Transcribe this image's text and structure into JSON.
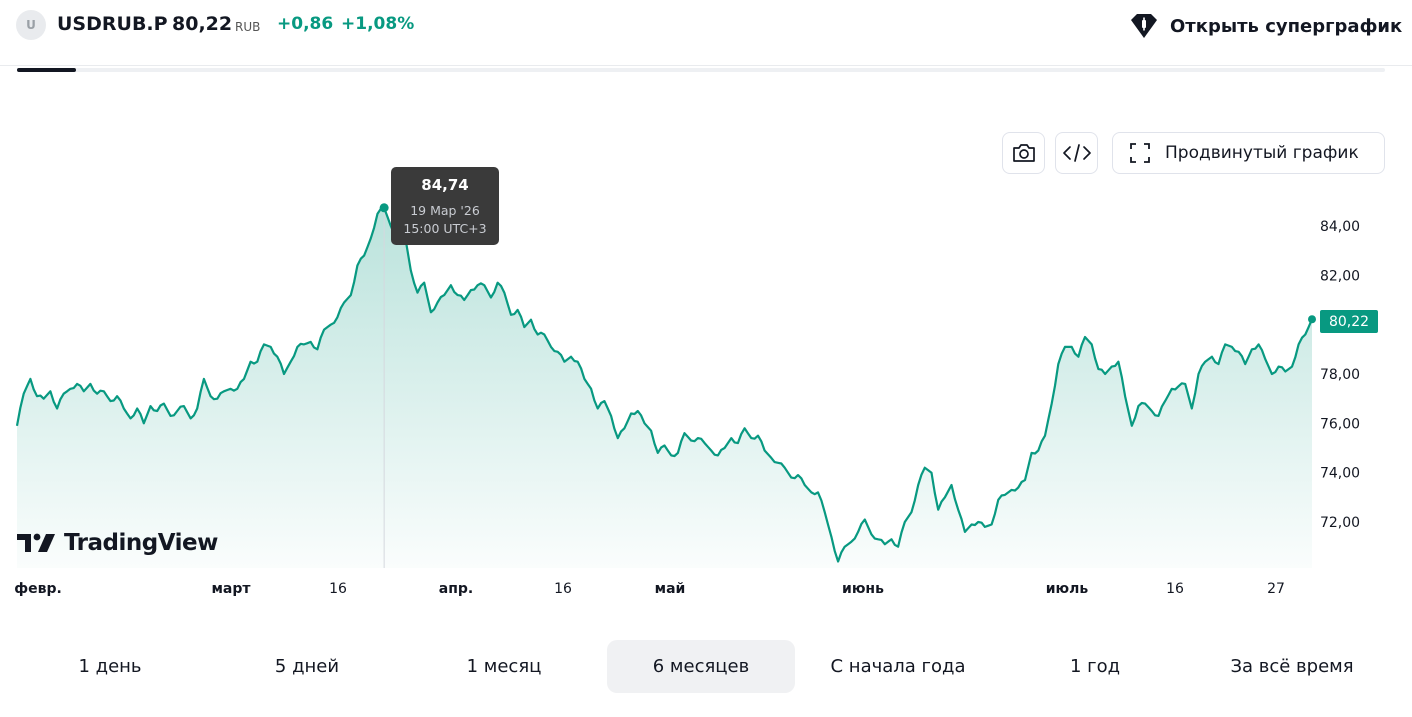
{
  "header": {
    "avatar_letter": "U",
    "ticker": "USDRUB.P",
    "price": "80,22",
    "currency": "RUB",
    "change": "+0,86",
    "change_pct": "+1,08%",
    "super_chart_label": "Открыть суперграфик"
  },
  "toolbar": {
    "screenshot_icon": "camera-icon",
    "embed_icon": "code-icon",
    "advanced_label": "Продвинутый график"
  },
  "tooltip": {
    "value": "84,74",
    "date": "19 Мар '26",
    "time": "15:00 UTC+3"
  },
  "last_price_label": "80,22",
  "watermark": "TradingView",
  "colors": {
    "accent": "#089981",
    "tooltip_bg": "#3a3a3a",
    "text": "#131722"
  },
  "periods": [
    {
      "label": "1 день",
      "active": false
    },
    {
      "label": "5 дней",
      "active": false
    },
    {
      "label": "1 месяц",
      "active": false
    },
    {
      "label": "6 месяцев",
      "active": true
    },
    {
      "label": "С начала года",
      "active": false
    },
    {
      "label": "1 год",
      "active": false
    },
    {
      "label": "За всё время",
      "active": false
    }
  ],
  "chart_data": {
    "type": "area",
    "series": [
      {
        "values": [
          75.9,
          77.2,
          77.8,
          77.1,
          77.0,
          77.3,
          76.6,
          77.2,
          77.4,
          77.6,
          77.3,
          77.6,
          77.2,
          77.3,
          76.9,
          77.1,
          76.6,
          76.2,
          76.6,
          76.0,
          76.7,
          76.5,
          76.8,
          76.3,
          76.5,
          76.7,
          76.2,
          76.6,
          77.8,
          77.1,
          77.0,
          77.3,
          77.4,
          77.4,
          77.8,
          78.5,
          78.5,
          79.2,
          79.1,
          78.7,
          78.0,
          78.5,
          79.1,
          79.2,
          79.3,
          79.0,
          79.8,
          80.0,
          80.3,
          80.9,
          81.2,
          82.4,
          82.8,
          83.5,
          84.5,
          84.74,
          84.0,
          83.5,
          83.8,
          82.2,
          81.3,
          81.7,
          80.5,
          80.9,
          81.2,
          81.6,
          81.2,
          81.0,
          81.4,
          81.6,
          81.6,
          81.1,
          81.7,
          81.3,
          80.4,
          80.6,
          79.9,
          80.2,
          79.6,
          79.6,
          79.1,
          78.9,
          78.5,
          78.7,
          78.5,
          77.8,
          77.4,
          76.6,
          76.9,
          76.3,
          75.4,
          75.8,
          76.4,
          76.5,
          76.0,
          75.7,
          74.8,
          75.1,
          74.7,
          74.8,
          75.6,
          75.3,
          75.4,
          75.2,
          74.9,
          74.7,
          75.0,
          75.4,
          75.2,
          75.8,
          75.4,
          75.5,
          74.9,
          74.6,
          74.4,
          74.2,
          73.8,
          73.9,
          73.5,
          73.2,
          73.2,
          72.4,
          71.4,
          70.4,
          71.0,
          71.2,
          71.6,
          72.1,
          71.5,
          71.3,
          71.1,
          71.3,
          71.0,
          72.0,
          72.4,
          73.5,
          74.2,
          74.0,
          72.5,
          73.0,
          73.5,
          72.5,
          71.6,
          71.9,
          72.0,
          71.8,
          71.9,
          72.9,
          73.1,
          73.3,
          73.4,
          73.7,
          74.8,
          74.9,
          75.5,
          76.8,
          78.4,
          79.1,
          79.1,
          78.7,
          79.5,
          79.2,
          78.2,
          78.0,
          78.3,
          78.5,
          77.1,
          75.9,
          76.7,
          76.8,
          76.5,
          76.3,
          76.9,
          77.4,
          77.5,
          77.6,
          76.6,
          78.0,
          78.5,
          78.7,
          78.4,
          79.2,
          79.1,
          78.9,
          78.4,
          79.0,
          79.2,
          78.6,
          78.0,
          78.3,
          78.1,
          78.3,
          79.2,
          79.6,
          80.22
        ],
        "color": "#089981"
      }
    ],
    "x_labels": [
      "февр.",
      "март",
      "16",
      "апр.",
      "16",
      "май",
      "июнь",
      "июль",
      "16",
      "27"
    ],
    "y_ticks": [
      "84,00",
      "82,00",
      "80,00",
      "78,00",
      "76,00",
      "74,00",
      "72,00"
    ],
    "ylim": [
      70.4,
      84.9
    ],
    "highlight": {
      "value": 84.74,
      "label": "84,74"
    },
    "last_value": 80.22,
    "grid": false
  }
}
